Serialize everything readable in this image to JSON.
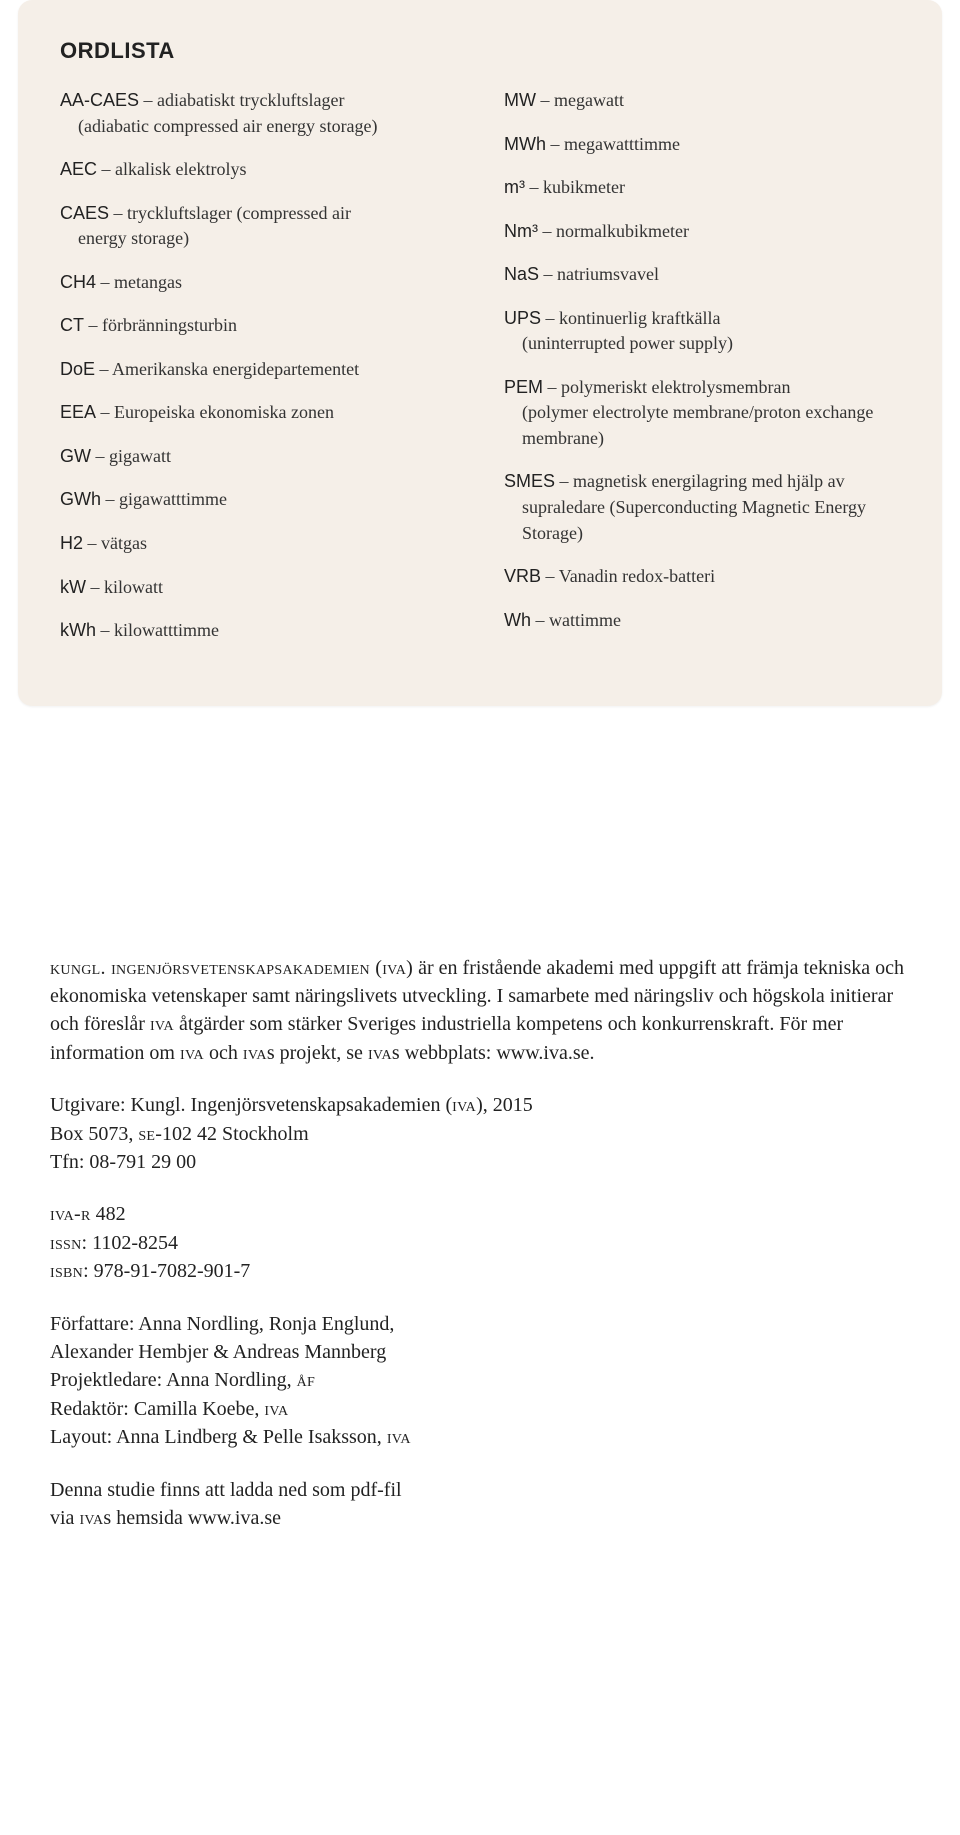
{
  "glossary": {
    "title": "ORDLISTA",
    "left": [
      {
        "abbr": "AA-CAES",
        "def": " – adiabatiskt tryckluftslager",
        "cont": "(adiabatic compressed air energy storage)"
      },
      {
        "abbr": "AEC",
        "def": " – alkalisk elektrolys"
      },
      {
        "abbr": "CAES",
        "def": " – tryckluftslager (compressed air",
        "cont": "energy storage)"
      },
      {
        "abbr": "CH4",
        "def": " – metangas"
      },
      {
        "abbr": "CT",
        "def": " – förbränningsturbin"
      },
      {
        "abbr": "DoE",
        "def": " – Amerikanska energidepartementet"
      },
      {
        "abbr": "EEA",
        "def": " – Europeiska ekonomiska zonen"
      },
      {
        "abbr": "GW",
        "def": " – gigawatt"
      },
      {
        "abbr": "GWh",
        "def": " – gigawatttimme"
      },
      {
        "abbr": "H2",
        "def": " – vätgas"
      },
      {
        "abbr": "kW",
        "def": " – kilowatt"
      },
      {
        "abbr": "kWh",
        "def": " – kilowatttimme"
      }
    ],
    "right": [
      {
        "abbr": "MW",
        "def": " – megawatt"
      },
      {
        "abbr": "MWh",
        "def": " – megawatttimme"
      },
      {
        "abbr": "m³",
        "def": " – kubikmeter"
      },
      {
        "abbr": "Nm³",
        "def": " – normalkubikmeter"
      },
      {
        "abbr": "NaS",
        "def": " – natriumsvavel"
      },
      {
        "abbr": "UPS",
        "def": " – kontinuerlig kraftkälla",
        "cont": "(uninterrupted power supply)"
      },
      {
        "abbr": "PEM",
        "def": " – polymeriskt elektrolysmembran",
        "cont": "(polymer electrolyte membrane/proton exchange membrane)"
      },
      {
        "abbr": "SMES",
        "def": " – magnetisk energilagring med hjälp av",
        "cont": "supraledare (Superconducting Magnetic Energy Storage)"
      },
      {
        "abbr": "VRB",
        "def": " – Vanadin redox-batteri"
      },
      {
        "abbr": "Wh",
        "def": " – wattimme"
      }
    ]
  },
  "info": {
    "para1_lead": "kungl. ingenjörsvetenskapsakademien (iva)",
    "para1_rest": " är en fristående akademi med uppgift att främja tekniska och ekonomiska vetenskaper samt näringslivets utveckling. I samarbete med näringsliv och högskola initierar och föreslår ",
    "para1_iva1": "iva",
    "para1_rest2": " åtgärder som stärker Sveriges industriella kompetens och konkurrenskraft. För mer information om ",
    "para1_iva2": "iva",
    "para1_rest3": " och ",
    "para1_ivas1": "iva",
    "para1_rest4": "s projekt, se ",
    "para1_ivas2": "iva",
    "para1_rest5": "s webbplats: www.iva.se.",
    "publisher_l1a": "Utgivare: Kungl. Ingenjörsvetenskapsakademien (",
    "publisher_iva": "iva",
    "publisher_l1b": "), 2015",
    "publisher_l2a": "Box 5073, ",
    "publisher_se": "se",
    "publisher_l2b": "-102 42 Stockholm",
    "publisher_l3": "Tfn: 08-791 29 00",
    "ids_l1a": "iva-r",
    "ids_l1b": " 482",
    "ids_l2a": "issn",
    "ids_l2b": ": 1102-8254",
    "ids_l3a": "isbn",
    "ids_l3b": ": 978-91-7082-901-7",
    "credits_l1": "Författare: Anna Nordling, Ronja Englund,",
    "credits_l2": "Alexander Hembjer & Andreas Mannberg",
    "credits_l3a": "Projektledare: Anna Nordling, ",
    "credits_l3b": "åf",
    "credits_l4a": "Redaktör: Camilla Koebe, ",
    "credits_l4b": "iva",
    "credits_l5a": "Layout: Anna Lindberg & Pelle Isaksson, ",
    "credits_l5b": "iva",
    "download_l1": "Denna studie finns att ladda ned som pdf-fil",
    "download_l2a": "via ",
    "download_l2b": "iva",
    "download_l2c": "s hemsida www.iva.se"
  }
}
